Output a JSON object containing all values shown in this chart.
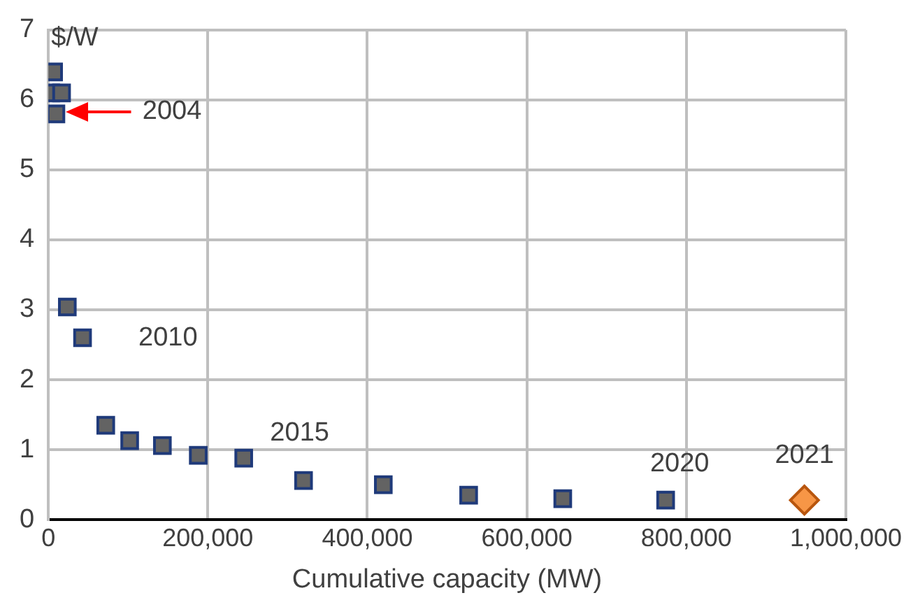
{
  "chart_data": {
    "type": "scatter",
    "xlabel": "Cumulative capacity (MW)",
    "ylabel": "$/W",
    "xlim": [
      0,
      1000000
    ],
    "xticks": [
      0,
      {
        "value": 200000,
        "label": "200,000"
      },
      {
        "value": 400000,
        "label": "400,000"
      },
      {
        "value": 600000,
        "label": "600,000"
      },
      {
        "value": 800000,
        "label": "800,000"
      },
      {
        "value": 1000000,
        "label": "1,000,000"
      }
    ],
    "ylim": [
      0,
      7
    ],
    "yticks": [
      0,
      1,
      2,
      3,
      4,
      5,
      6,
      7
    ],
    "grid": true,
    "legend": false,
    "series": [
      {
        "marker": "square",
        "color": "#636363",
        "x": [
          3000,
          6600,
          9500,
          16600,
          23800,
          42900,
          72000,
          102000,
          143000,
          188000,
          245000,
          320000,
          420000,
          527000,
          645000,
          774000
        ],
        "values": [
          6.1,
          6.4,
          5.8,
          6.1,
          3.04,
          2.6,
          1.35,
          1.13,
          1.06,
          0.92,
          0.88,
          0.56,
          0.5,
          0.35,
          0.3,
          0.28
        ]
      },
      {
        "marker": "diamond",
        "color": "#f79646",
        "x": [
          948000
        ],
        "values": [
          0.28
        ]
      }
    ],
    "annotations": [
      "2004",
      {
        "text": "2010",
        "x": 42900,
        "y": 2.6
      },
      {
        "text": "2015",
        "x": 245000,
        "y": 0.88
      },
      {
        "text": "2020",
        "x": 774000,
        "y": 0.28
      },
      {
        "text": "2021",
        "x": 948000,
        "y": 0.28
      }
    ]
  }
}
